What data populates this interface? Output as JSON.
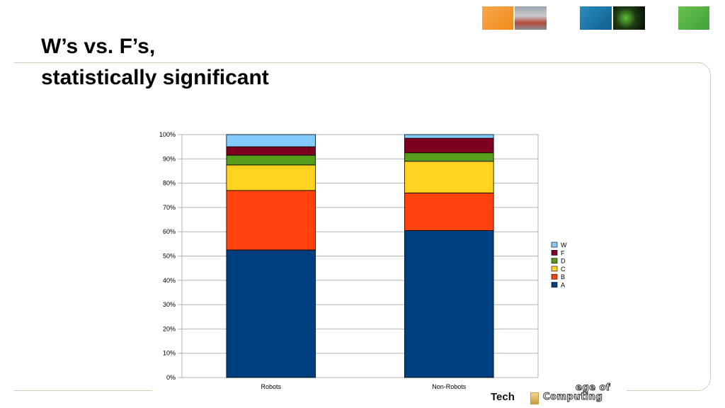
{
  "slide": {
    "title_line1": "W’s vs. F’s,",
    "title_line2": "statistically significant"
  },
  "footer": {
    "tech": "Tech",
    "line1": "ege of",
    "line2": "Computing"
  },
  "colors": {
    "A": "#003f7f",
    "B": "#ff420e",
    "C": "#ffd320",
    "D": "#579d1c",
    "F": "#7e0021",
    "W": "#83caff"
  },
  "chart_data": {
    "type": "bar",
    "stacked": true,
    "categories": [
      "Robots",
      "Non-Robots"
    ],
    "series": [
      {
        "name": "A",
        "values": [
          52.5,
          60.5
        ]
      },
      {
        "name": "B",
        "values": [
          24.5,
          15.5
        ]
      },
      {
        "name": "C",
        "values": [
          10.5,
          13.0
        ]
      },
      {
        "name": "D",
        "values": [
          4.0,
          3.5
        ]
      },
      {
        "name": "F",
        "values": [
          3.5,
          6.0
        ]
      },
      {
        "name": "W",
        "values": [
          5.0,
          1.5
        ]
      }
    ],
    "y_ticks": [
      "0%",
      "10%",
      "20%",
      "30%",
      "40%",
      "50%",
      "60%",
      "70%",
      "80%",
      "90%",
      "100%"
    ],
    "ylim": [
      0,
      100
    ],
    "grid": true,
    "legend_order": [
      "W",
      "F",
      "D",
      "C",
      "B",
      "A"
    ],
    "legend_position": "right"
  }
}
